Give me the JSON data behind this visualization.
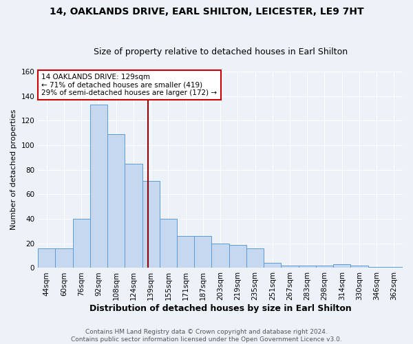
{
  "title": "14, OAKLANDS DRIVE, EARL SHILTON, LEICESTER, LE9 7HT",
  "subtitle": "Size of property relative to detached houses in Earl Shilton",
  "xlabel": "Distribution of detached houses by size in Earl Shilton",
  "ylabel": "Number of detached properties",
  "categories": [
    "44sqm",
    "60sqm",
    "76sqm",
    "92sqm",
    "108sqm",
    "124sqm",
    "139sqm",
    "155sqm",
    "171sqm",
    "187sqm",
    "203sqm",
    "219sqm",
    "235sqm",
    "251sqm",
    "267sqm",
    "283sqm",
    "298sqm",
    "314sqm",
    "330sqm",
    "346sqm",
    "362sqm"
  ],
  "values": [
    16,
    16,
    40,
    133,
    109,
    85,
    71,
    40,
    26,
    26,
    20,
    19,
    16,
    4,
    2,
    2,
    2,
    3,
    2,
    1,
    1
  ],
  "bar_color": "#c5d8f0",
  "bar_edge_color": "#5b9bd5",
  "vline_color": "#8b0000",
  "annotation_text": "14 OAKLANDS DRIVE: 129sqm\n← 71% of detached houses are smaller (419)\n29% of semi-detached houses are larger (172) →",
  "annotation_box_color": "white",
  "annotation_box_edge": "#cc0000",
  "ylim": [
    0,
    160
  ],
  "yticks": [
    0,
    20,
    40,
    60,
    80,
    100,
    120,
    140,
    160
  ],
  "footer": "Contains HM Land Registry data © Crown copyright and database right 2024.\nContains public sector information licensed under the Open Government Licence v3.0.",
  "bg_color": "#edf2f9",
  "title_fontsize": 10,
  "subtitle_fontsize": 9,
  "xlabel_fontsize": 9,
  "ylabel_fontsize": 8,
  "tick_fontsize": 7.5,
  "footer_fontsize": 6.5,
  "annotation_fontsize": 7.5
}
